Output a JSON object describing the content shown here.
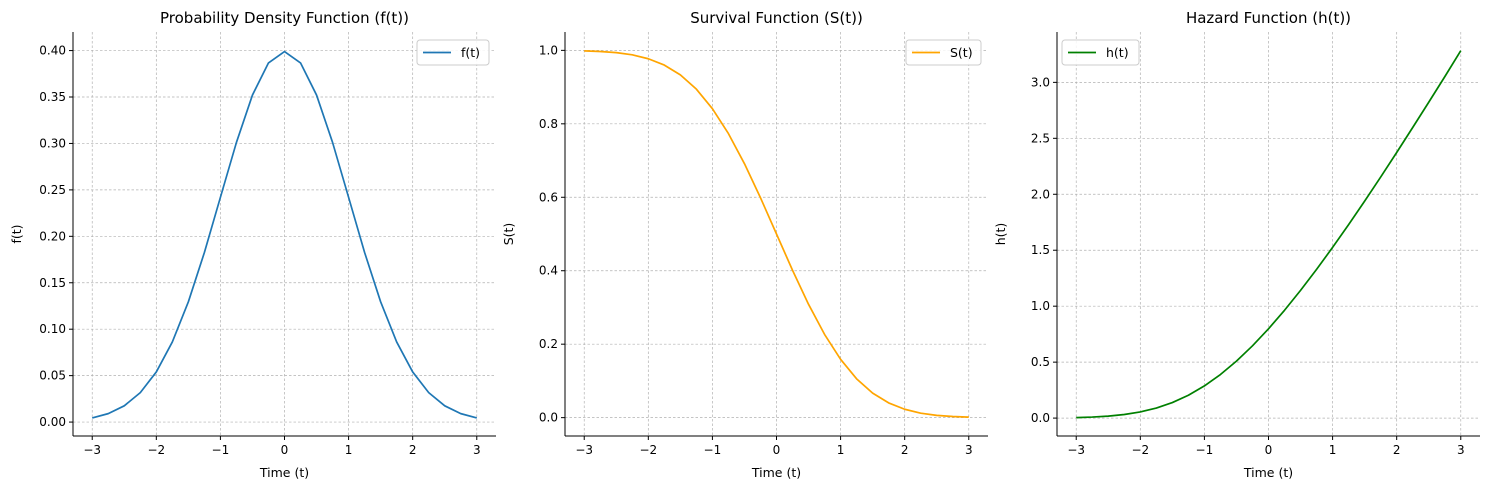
{
  "chart_data": [
    {
      "type": "line",
      "title": "Probability Density Function (f(t))",
      "xlabel": "Time (t)",
      "ylabel": "f(t)",
      "xlim": [
        -3.3,
        3.3
      ],
      "ylim": [
        -0.015,
        0.42
      ],
      "xticks": [
        -3,
        -2,
        -1,
        0,
        1,
        2,
        3
      ],
      "xtick_labels": [
        "−3",
        "−2",
        "−1",
        "0",
        "1",
        "2",
        "3"
      ],
      "yticks": [
        0,
        0.05,
        0.1,
        0.15,
        0.2,
        0.25,
        0.3,
        0.35,
        0.4
      ],
      "ytick_labels": [
        "0.00",
        "0.05",
        "0.10",
        "0.15",
        "0.20",
        "0.25",
        "0.30",
        "0.35",
        "0.40"
      ],
      "grid": true,
      "legend_position": "top-right",
      "series": [
        {
          "name": "f(t)",
          "color": "#1f77b4",
          "x": [
            -3.0,
            -2.75,
            -2.5,
            -2.25,
            -2.0,
            -1.75,
            -1.5,
            -1.25,
            -1.0,
            -0.75,
            -0.5,
            -0.25,
            0.0,
            0.25,
            0.5,
            0.75,
            1.0,
            1.25,
            1.5,
            1.75,
            2.0,
            2.25,
            2.5,
            2.75,
            3.0
          ],
          "y": [
            0.0044,
            0.0091,
            0.0175,
            0.0317,
            0.054,
            0.0863,
            0.1295,
            0.1826,
            0.242,
            0.3011,
            0.3521,
            0.3867,
            0.3989,
            0.3867,
            0.3521,
            0.3011,
            0.242,
            0.1826,
            0.1295,
            0.0863,
            0.054,
            0.0317,
            0.0175,
            0.0091,
            0.0044
          ]
        }
      ]
    },
    {
      "type": "line",
      "title": "Survival Function (S(t))",
      "xlabel": "Time (t)",
      "ylabel": "S(t)",
      "xlim": [
        -3.3,
        3.3
      ],
      "ylim": [
        -0.05,
        1.05
      ],
      "xticks": [
        -3,
        -2,
        -1,
        0,
        1,
        2,
        3
      ],
      "xtick_labels": [
        "−3",
        "−2",
        "−1",
        "0",
        "1",
        "2",
        "3"
      ],
      "yticks": [
        0,
        0.2,
        0.4,
        0.6,
        0.8,
        1.0
      ],
      "ytick_labels": [
        "0.0",
        "0.2",
        "0.4",
        "0.6",
        "0.8",
        "1.0"
      ],
      "grid": true,
      "legend_position": "top-right",
      "series": [
        {
          "name": "S(t)",
          "color": "#ffa500",
          "x": [
            -3.0,
            -2.75,
            -2.5,
            -2.25,
            -2.0,
            -1.75,
            -1.5,
            -1.25,
            -1.0,
            -0.75,
            -0.5,
            -0.25,
            0.0,
            0.25,
            0.5,
            0.75,
            1.0,
            1.25,
            1.5,
            1.75,
            2.0,
            2.25,
            2.5,
            2.75,
            3.0
          ],
          "y": [
            0.9987,
            0.997,
            0.9938,
            0.9878,
            0.9772,
            0.9599,
            0.9332,
            0.8944,
            0.8413,
            0.7734,
            0.6915,
            0.5987,
            0.5,
            0.4013,
            0.3085,
            0.2266,
            0.1587,
            0.1056,
            0.0668,
            0.0401,
            0.0228,
            0.0122,
            0.0062,
            0.003,
            0.0013
          ]
        }
      ]
    },
    {
      "type": "line",
      "title": "Hazard Function (h(t))",
      "xlabel": "Time (t)",
      "ylabel": "h(t)",
      "xlim": [
        -3.3,
        3.3
      ],
      "ylim": [
        -0.16,
        3.45
      ],
      "xticks": [
        -3,
        -2,
        -1,
        0,
        1,
        2,
        3
      ],
      "xtick_labels": [
        "−3",
        "−2",
        "−1",
        "0",
        "1",
        "2",
        "3"
      ],
      "yticks": [
        0,
        0.5,
        1.0,
        1.5,
        2.0,
        2.5,
        3.0
      ],
      "ytick_labels": [
        "0.0",
        "0.5",
        "1.0",
        "1.5",
        "2.0",
        "2.5",
        "3.0"
      ],
      "grid": true,
      "legend_position": "top-left",
      "series": [
        {
          "name": "h(t)",
          "color": "#008000",
          "x": [
            -3.0,
            -2.75,
            -2.5,
            -2.25,
            -2.0,
            -1.75,
            -1.5,
            -1.25,
            -1.0,
            -0.75,
            -0.5,
            -0.25,
            0.0,
            0.25,
            0.5,
            0.75,
            1.0,
            1.25,
            1.5,
            1.75,
            2.0,
            2.25,
            2.5,
            2.75,
            3.0
          ],
          "y": [
            0.0044,
            0.0092,
            0.0176,
            0.0321,
            0.0553,
            0.0899,
            0.1388,
            0.2042,
            0.2876,
            0.3893,
            0.5092,
            0.6459,
            0.7979,
            0.9636,
            1.1411,
            1.3288,
            1.5251,
            1.7288,
            1.9386,
            2.1535,
            2.3732,
            2.5968,
            2.8224,
            3.05,
            3.283
          ]
        }
      ]
    }
  ]
}
